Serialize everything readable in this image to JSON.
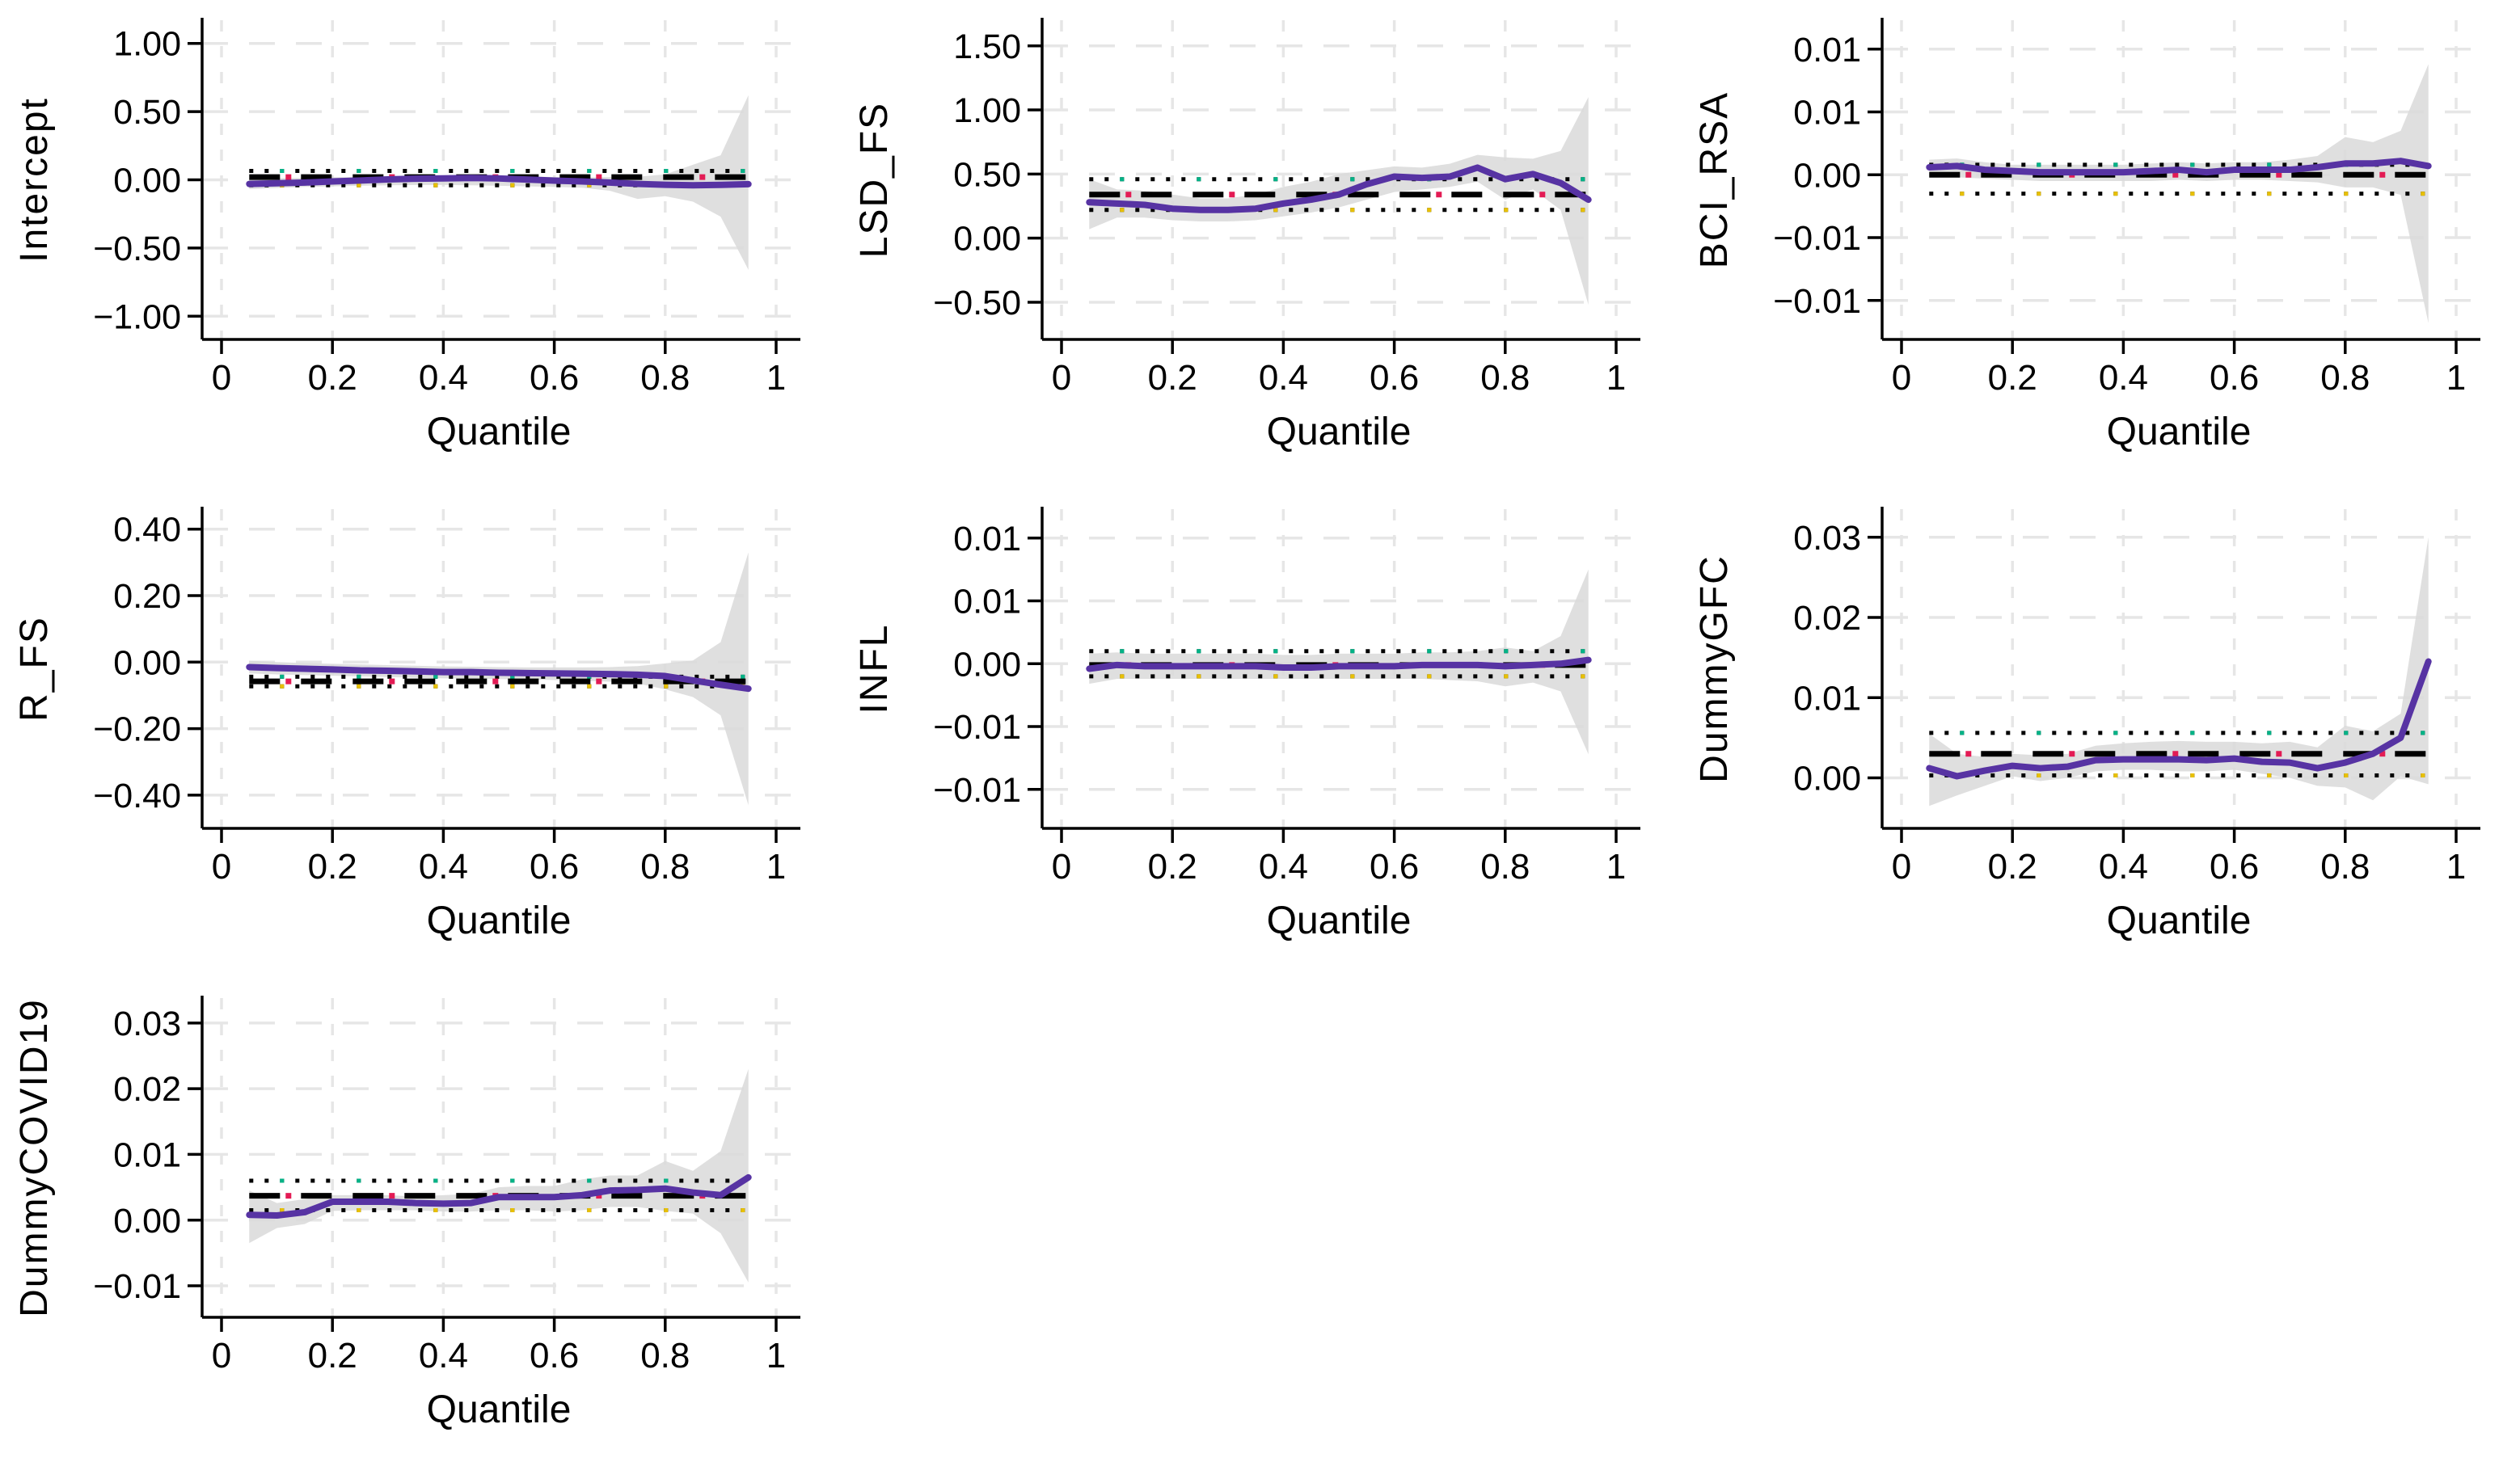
{
  "figure": {
    "title": "",
    "layout": "3x3 grid, 7 panels",
    "background": "#ffffff"
  },
  "style": {
    "coef_color": "#5733A3",
    "band_color": "#d9d9d9",
    "ols_color": "#000000",
    "ols_accent_color": "#E31B54",
    "ci_upper_accent_color": "#00B386",
    "ci_lower_accent_color": "#E8C000",
    "grid_color": "#e6e6e6",
    "axis_color": "#000000"
  },
  "chart_data": [
    {
      "type": "line",
      "ylabel": "Intercept",
      "xlabel": "Quantile",
      "x": [
        0.05,
        0.1,
        0.15,
        0.2,
        0.25,
        0.3,
        0.35,
        0.4,
        0.45,
        0.5,
        0.55,
        0.6,
        0.65,
        0.7,
        0.75,
        0.8,
        0.85,
        0.9,
        0.95
      ],
      "xticks": {
        "values": [
          0,
          0.2,
          0.4,
          0.6,
          0.8,
          1
        ],
        "labels": [
          "0",
          "0.2",
          "0.4",
          "0.6",
          "0.8",
          "1"
        ]
      },
      "yticks": {
        "values": [
          1.0,
          0.5,
          0.0,
          -0.5,
          -1.0
        ],
        "labels": [
          "1.00",
          "0.50",
          "0.00",
          "−0.50",
          "−1.00"
        ]
      },
      "ylim": [
        -1.17,
        1.17
      ],
      "legend_position": "none",
      "grid": true,
      "series": [
        {
          "name": "quantile-coefficient",
          "values": [
            -0.03,
            -0.025,
            -0.02,
            -0.012,
            -0.005,
            0.003,
            0.008,
            0.01,
            0.013,
            0.01,
            0.002,
            -0.006,
            -0.012,
            -0.02,
            -0.03,
            -0.036,
            -0.04,
            -0.037,
            -0.032
          ]
        },
        {
          "name": "ols-coefficient",
          "style": "dashed",
          "value": 0.02
        },
        {
          "name": "ols-ci-upper",
          "style": "dotted",
          "value": 0.065
        },
        {
          "name": "ols-ci-lower",
          "style": "dotted",
          "value": -0.04
        }
      ],
      "band": {
        "name": "quantile-95ci",
        "upper": [
          0.01,
          0.012,
          0.015,
          0.018,
          0.022,
          0.028,
          0.03,
          0.033,
          0.036,
          0.032,
          0.026,
          0.02,
          0.018,
          0.02,
          0.022,
          0.04,
          0.11,
          0.18,
          0.62
        ],
        "lower": [
          -0.068,
          -0.06,
          -0.052,
          -0.048,
          -0.044,
          -0.04,
          -0.038,
          -0.038,
          -0.04,
          -0.044,
          -0.048,
          -0.052,
          -0.058,
          -0.08,
          -0.14,
          -0.12,
          -0.16,
          -0.27,
          -0.66
        ]
      }
    },
    {
      "type": "line",
      "ylabel": "LSD_FS",
      "xlabel": "Quantile",
      "x": [
        0.05,
        0.1,
        0.15,
        0.2,
        0.25,
        0.3,
        0.35,
        0.4,
        0.45,
        0.5,
        0.55,
        0.6,
        0.65,
        0.7,
        0.75,
        0.8,
        0.85,
        0.9,
        0.95
      ],
      "xticks": {
        "values": [
          0,
          0.2,
          0.4,
          0.6,
          0.8,
          1
        ],
        "labels": [
          "0",
          "0.2",
          "0.4",
          "0.6",
          "0.8",
          "1"
        ]
      },
      "yticks": {
        "values": [
          1.5,
          1.0,
          0.5,
          0.0,
          -0.5
        ],
        "labels": [
          "1.50",
          "1.00",
          "0.50",
          "0.00",
          "−0.50"
        ]
      },
      "ylim": [
        -0.79,
        1.7
      ],
      "legend_position": "none",
      "grid": true,
      "series": [
        {
          "name": "quantile-coefficient",
          "values": [
            0.28,
            0.27,
            0.26,
            0.23,
            0.22,
            0.22,
            0.23,
            0.27,
            0.3,
            0.34,
            0.42,
            0.48,
            0.47,
            0.48,
            0.55,
            0.46,
            0.5,
            0.43,
            0.3
          ]
        },
        {
          "name": "ols-coefficient",
          "style": "dashed",
          "value": 0.34
        },
        {
          "name": "ols-ci-upper",
          "style": "dotted",
          "value": 0.46
        },
        {
          "name": "ols-ci-lower",
          "style": "dotted",
          "value": 0.22
        }
      ],
      "band": {
        "name": "quantile-95ci",
        "upper": [
          0.46,
          0.38,
          0.37,
          0.34,
          0.31,
          0.31,
          0.34,
          0.4,
          0.44,
          0.5,
          0.53,
          0.56,
          0.55,
          0.58,
          0.65,
          0.63,
          0.62,
          0.68,
          1.1
        ],
        "lower": [
          0.07,
          0.16,
          0.16,
          0.14,
          0.13,
          0.13,
          0.14,
          0.17,
          0.2,
          0.24,
          0.3,
          0.36,
          0.38,
          0.4,
          0.44,
          0.3,
          0.38,
          0.22,
          -0.52
        ]
      }
    },
    {
      "type": "line",
      "ylabel": "BCI_RSA",
      "xlabel": "Quantile",
      "x": [
        0.05,
        0.1,
        0.15,
        0.2,
        0.25,
        0.3,
        0.35,
        0.4,
        0.45,
        0.5,
        0.55,
        0.6,
        0.65,
        0.7,
        0.75,
        0.8,
        0.85,
        0.9,
        0.95
      ],
      "xticks": {
        "values": [
          0,
          0.2,
          0.4,
          0.6,
          0.8,
          1
        ],
        "labels": [
          "0",
          "0.2",
          "0.4",
          "0.6",
          "0.8",
          "1"
        ]
      },
      "yticks": {
        "values": [
          0.01,
          0.005,
          0.0,
          -0.005,
          -0.01
        ],
        "labels": [
          "0.01",
          "0.01",
          "0.00",
          "−0.01",
          "−0.01"
        ]
      },
      "ylim": [
        -0.0131,
        0.0123
      ],
      "legend_position": "none",
      "grid": true,
      "series": [
        {
          "name": "quantile-coefficient",
          "values": [
            0.0006,
            0.0007,
            0.0004,
            0.0003,
            0.0002,
            0.0002,
            0.0002,
            0.0002,
            0.0003,
            0.0004,
            0.0002,
            0.0004,
            0.0004,
            0.0004,
            0.0006,
            0.0009,
            0.0009,
            0.0011,
            0.0007
          ]
        },
        {
          "name": "ols-coefficient",
          "style": "dashed",
          "value": 0.0
        },
        {
          "name": "ols-ci-upper",
          "style": "dotted",
          "value": 0.0008
        },
        {
          "name": "ols-ci-lower",
          "style": "dotted",
          "value": -0.0015
        }
      ],
      "band": {
        "name": "quantile-95ci",
        "upper": [
          0.0012,
          0.0013,
          0.001,
          0.0008,
          0.0008,
          0.0008,
          0.0008,
          0.0008,
          0.0009,
          0.001,
          0.0009,
          0.001,
          0.001,
          0.0012,
          0.0015,
          0.003,
          0.0026,
          0.0035,
          0.0088
        ],
        "lower": [
          -0.0002,
          -0.0002,
          -0.0003,
          -0.0004,
          -0.0005,
          -0.0005,
          -0.0005,
          -0.0005,
          -0.0005,
          -0.0004,
          -0.0005,
          -0.0004,
          -0.0004,
          -0.0005,
          -0.0006,
          -0.001,
          -0.001,
          -0.0016,
          -0.0118
        ]
      }
    },
    {
      "type": "line",
      "ylabel": "R_FS",
      "xlabel": "Quantile",
      "x": [
        0.05,
        0.1,
        0.15,
        0.2,
        0.25,
        0.3,
        0.35,
        0.4,
        0.45,
        0.5,
        0.55,
        0.6,
        0.65,
        0.7,
        0.75,
        0.8,
        0.85,
        0.9,
        0.95
      ],
      "xticks": {
        "values": [
          0,
          0.2,
          0.4,
          0.6,
          0.8,
          1
        ],
        "labels": [
          "0",
          "0.2",
          "0.4",
          "0.6",
          "0.8",
          "1"
        ]
      },
      "yticks": {
        "values": [
          0.4,
          0.2,
          0.0,
          -0.2,
          -0.4
        ],
        "labels": [
          "0.40",
          "0.20",
          "0.00",
          "−0.20",
          "−0.40"
        ]
      },
      "ylim": [
        -0.5,
        0.46
      ],
      "legend_position": "none",
      "grid": true,
      "series": [
        {
          "name": "quantile-coefficient",
          "values": [
            -0.015,
            -0.018,
            -0.02,
            -0.022,
            -0.025,
            -0.026,
            -0.028,
            -0.03,
            -0.03,
            -0.032,
            -0.033,
            -0.034,
            -0.035,
            -0.036,
            -0.038,
            -0.042,
            -0.055,
            -0.068,
            -0.08
          ]
        },
        {
          "name": "ols-coefficient",
          "style": "dashed",
          "value": -0.058
        },
        {
          "name": "ols-ci-upper",
          "style": "dotted",
          "value": -0.044
        },
        {
          "name": "ols-ci-lower",
          "style": "dotted",
          "value": -0.073
        }
      ],
      "band": {
        "name": "quantile-95ci",
        "upper": [
          0.004,
          0.0,
          -0.003,
          -0.005,
          -0.007,
          -0.009,
          -0.011,
          -0.013,
          -0.014,
          -0.015,
          -0.016,
          -0.016,
          -0.016,
          -0.015,
          -0.012,
          -0.004,
          0.005,
          0.06,
          0.33
        ],
        "lower": [
          -0.034,
          -0.037,
          -0.039,
          -0.041,
          -0.043,
          -0.045,
          -0.047,
          -0.049,
          -0.05,
          -0.051,
          -0.052,
          -0.054,
          -0.056,
          -0.059,
          -0.064,
          -0.082,
          -0.105,
          -0.16,
          -0.43
        ]
      }
    },
    {
      "type": "line",
      "ylabel": "INFL",
      "xlabel": "Quantile",
      "x": [
        0.05,
        0.1,
        0.15,
        0.2,
        0.25,
        0.3,
        0.35,
        0.4,
        0.45,
        0.5,
        0.55,
        0.6,
        0.65,
        0.7,
        0.75,
        0.8,
        0.85,
        0.9,
        0.95
      ],
      "xticks": {
        "values": [
          0,
          0.2,
          0.4,
          0.6,
          0.8,
          1
        ],
        "labels": [
          "0",
          "0.2",
          "0.4",
          "0.6",
          "0.8",
          "1"
        ]
      },
      "yticks": {
        "values": [
          0.01,
          0.005,
          0.0,
          -0.005,
          -0.01
        ],
        "labels": [
          "0.01",
          "0.01",
          "0.00",
          "−0.01",
          "−0.01"
        ]
      },
      "ylim": [
        -0.0131,
        0.0123
      ],
      "legend_position": "none",
      "grid": true,
      "series": [
        {
          "name": "quantile-coefficient",
          "values": [
            -0.0004,
            -0.0001,
            -0.0002,
            -0.0002,
            -0.0002,
            -0.0002,
            -0.0002,
            -0.0003,
            -0.0003,
            -0.0002,
            -0.0002,
            -0.0002,
            -0.0001,
            -0.0001,
            -0.0001,
            -0.0002,
            -0.0001,
            0.0,
            0.0003
          ]
        },
        {
          "name": "ols-coefficient",
          "style": "dashed",
          "value": -0.0001
        },
        {
          "name": "ols-ci-upper",
          "style": "dotted",
          "value": 0.001
        },
        {
          "name": "ols-ci-lower",
          "style": "dotted",
          "value": -0.001
        }
      ],
      "band": {
        "name": "quantile-95ci",
        "upper": [
          0.0008,
          0.0009,
          0.0008,
          0.0008,
          0.0008,
          0.0008,
          0.0008,
          0.0007,
          0.0007,
          0.0008,
          0.0008,
          0.0008,
          0.0009,
          0.0009,
          0.001,
          0.0013,
          0.001,
          0.0022,
          0.0075
        ],
        "lower": [
          -0.0016,
          -0.0012,
          -0.0012,
          -0.0012,
          -0.0012,
          -0.0012,
          -0.0012,
          -0.0012,
          -0.0012,
          -0.0012,
          -0.0012,
          -0.0012,
          -0.0012,
          -0.0013,
          -0.0014,
          -0.0018,
          -0.0015,
          -0.0022,
          -0.0072
        ]
      }
    },
    {
      "type": "line",
      "ylabel": "DummyGFC",
      "xlabel": "Quantile",
      "x": [
        0.05,
        0.1,
        0.15,
        0.2,
        0.25,
        0.3,
        0.35,
        0.4,
        0.45,
        0.5,
        0.55,
        0.6,
        0.65,
        0.7,
        0.75,
        0.8,
        0.85,
        0.9,
        0.95
      ],
      "xticks": {
        "values": [
          0,
          0.2,
          0.4,
          0.6,
          0.8,
          1
        ],
        "labels": [
          "0",
          "0.2",
          "0.4",
          "0.6",
          "0.8",
          "1"
        ]
      },
      "yticks": {
        "values": [
          0.03,
          0.02,
          0.01,
          0.0
        ],
        "labels": [
          "0.03",
          "0.02",
          "0.01",
          "0.00"
        ]
      },
      "ylim": [
        -0.0063,
        0.0335
      ],
      "legend_position": "none",
      "grid": true,
      "series": [
        {
          "name": "quantile-coefficient",
          "values": [
            0.0012,
            0.0002,
            0.0009,
            0.0015,
            0.0012,
            0.0014,
            0.0022,
            0.0023,
            0.0023,
            0.0023,
            0.0022,
            0.0024,
            0.002,
            0.0019,
            0.0012,
            0.0019,
            0.003,
            0.005,
            0.0145
          ]
        },
        {
          "name": "ols-coefficient",
          "style": "dashed",
          "value": 0.003
        },
        {
          "name": "ols-ci-upper",
          "style": "dotted",
          "value": 0.0056
        },
        {
          "name": "ols-ci-lower",
          "style": "dotted",
          "value": 0.0003
        }
      ],
      "band": {
        "name": "quantile-95ci",
        "upper": [
          0.0055,
          0.003,
          0.0026,
          0.003,
          0.0028,
          0.003,
          0.004,
          0.0043,
          0.0045,
          0.0046,
          0.0045,
          0.0045,
          0.0043,
          0.0045,
          0.0038,
          0.0065,
          0.0058,
          0.008,
          0.03
        ],
        "lower": [
          -0.0035,
          -0.0022,
          -0.001,
          0.0002,
          -0.0004,
          0.0,
          0.0008,
          0.001,
          0.001,
          0.0008,
          0.0008,
          0.001,
          0.0005,
          0.0,
          -0.001,
          -0.0012,
          -0.0028,
          0.0002,
          -0.0008
        ]
      }
    },
    {
      "type": "line",
      "ylabel": "DummyCOVID19",
      "xlabel": "Quantile",
      "x": [
        0.05,
        0.1,
        0.15,
        0.2,
        0.25,
        0.3,
        0.35,
        0.4,
        0.45,
        0.5,
        0.55,
        0.6,
        0.65,
        0.7,
        0.75,
        0.8,
        0.85,
        0.9,
        0.95
      ],
      "xticks": {
        "values": [
          0,
          0.2,
          0.4,
          0.6,
          0.8,
          1
        ],
        "labels": [
          "0",
          "0.2",
          "0.4",
          "0.6",
          "0.8",
          "1"
        ]
      },
      "yticks": {
        "values": [
          0.03,
          0.02,
          0.01,
          0.0,
          -0.01
        ],
        "labels": [
          "0.03",
          "0.02",
          "0.01",
          "0.00",
          "−0.01"
        ]
      },
      "ylim": [
        -0.0148,
        0.0338
      ],
      "legend_position": "none",
      "grid": true,
      "series": [
        {
          "name": "quantile-coefficient",
          "values": [
            0.0008,
            0.0007,
            0.0012,
            0.0028,
            0.0028,
            0.0028,
            0.0026,
            0.0025,
            0.0026,
            0.0035,
            0.0035,
            0.0035,
            0.0038,
            0.0045,
            0.0046,
            0.0048,
            0.0042,
            0.0038,
            0.0065
          ]
        },
        {
          "name": "ols-coefficient",
          "style": "dashed",
          "value": 0.0037
        },
        {
          "name": "ols-ci-upper",
          "style": "dotted",
          "value": 0.006
        },
        {
          "name": "ols-ci-lower",
          "style": "dotted",
          "value": 0.0015
        }
      ],
      "band": {
        "name": "quantile-95ci",
        "upper": [
          0.0045,
          0.0026,
          0.0032,
          0.0038,
          0.0038,
          0.0038,
          0.0036,
          0.0038,
          0.004,
          0.005,
          0.0052,
          0.0052,
          0.0062,
          0.0068,
          0.0068,
          0.009,
          0.0075,
          0.0105,
          0.023
        ],
        "lower": [
          -0.0035,
          -0.0012,
          -0.0006,
          0.0014,
          0.0015,
          0.0015,
          0.0015,
          0.0013,
          0.0013,
          0.0015,
          0.0015,
          0.0013,
          0.0015,
          0.002,
          0.002,
          0.0014,
          0.001,
          -0.002,
          -0.0095
        ]
      }
    }
  ]
}
